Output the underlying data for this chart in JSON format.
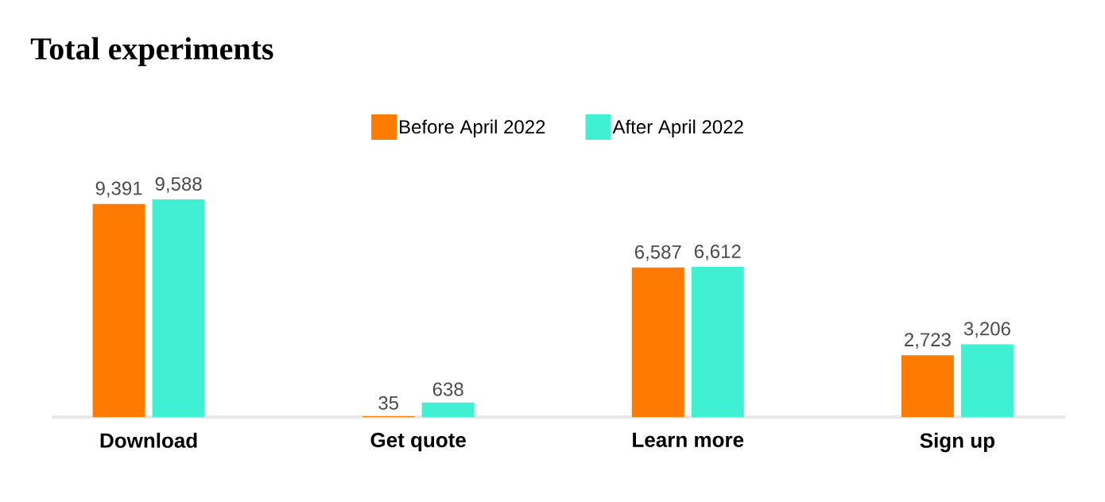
{
  "chart_data": {
    "type": "bar",
    "title": "Total experiments",
    "categories": [
      "Download",
      "Get quote",
      "Learn more",
      "Sign up"
    ],
    "series": [
      {
        "name": "Before April 2022",
        "color": "#ff7a00",
        "values": [
          9391,
          35,
          6587,
          2723
        ],
        "value_labels": [
          "9,391",
          "35",
          "6,587",
          "2,723"
        ]
      },
      {
        "name": "After April 2022",
        "color": "#3ff0d2",
        "values": [
          9588,
          638,
          6612,
          3206
        ],
        "value_labels": [
          "9,588",
          "638",
          "6,612",
          "3,206"
        ]
      }
    ],
    "legend": "top"
  }
}
